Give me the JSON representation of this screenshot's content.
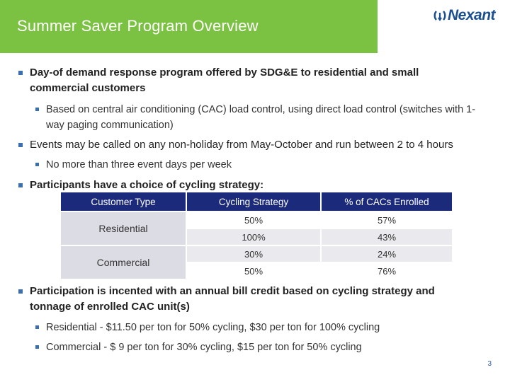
{
  "header": {
    "title": "Summer Saver Program Overview",
    "logo_text": "Nexant",
    "colors": {
      "bar": "#7cc242",
      "logo": "#1b4f93"
    }
  },
  "bullets": {
    "b1": "Day-of demand response program offered by SDG&E to residential and small commercial customers",
    "b1_sub": "Based on central air conditioning (CAC) load control, using direct load control (switches with 1-way paging communication)",
    "b2": "Events may be called on any non-holiday from May-October and run between 2 to 4 hours",
    "b2_sub": "No more than three event days per week",
    "b3": "Participants have a choice of cycling strategy:",
    "b4": "Participation is incented with an annual bill credit based on cycling strategy and tonnage of enrolled CAC unit(s)",
    "b4_sub1": "Residential - $11.50 per ton for 50% cycling, $30 per ton for 100% cycling",
    "b4_sub2": "Commercial - $ 9 per ton for 30% cycling, $15 per ton for 50% cycling"
  },
  "table": {
    "headers": [
      "Customer Type",
      "Cycling Strategy",
      "% of CACs Enrolled"
    ],
    "groups": [
      {
        "type": "Residential",
        "rows": [
          {
            "strategy": "50%",
            "enrolled": "57%"
          },
          {
            "strategy": "100%",
            "enrolled": "43%"
          }
        ]
      },
      {
        "type": "Commercial",
        "rows": [
          {
            "strategy": "30%",
            "enrolled": "24%"
          },
          {
            "strategy": "50%",
            "enrolled": "76%"
          }
        ]
      }
    ]
  },
  "footer": {
    "page": "3"
  }
}
